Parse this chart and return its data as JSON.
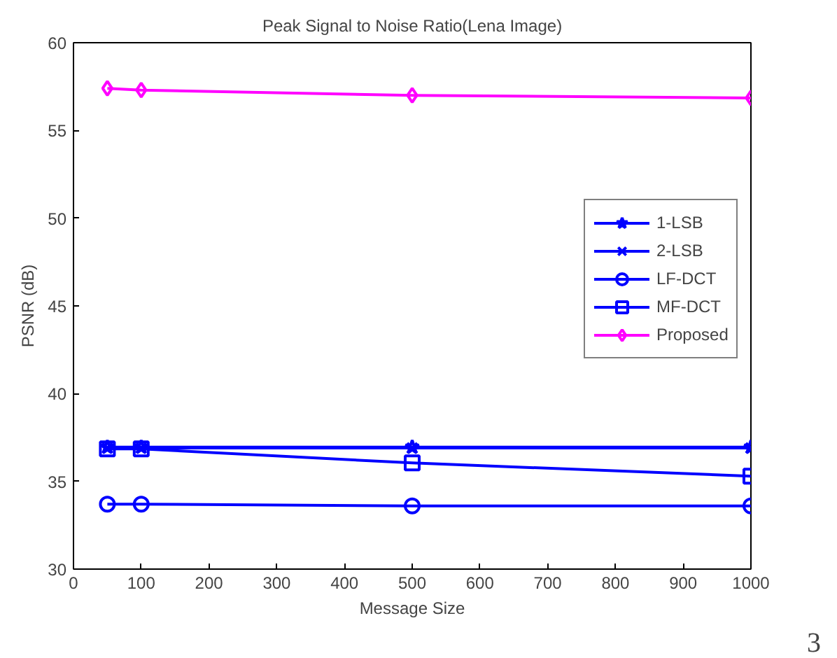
{
  "chart_data": {
    "type": "line",
    "title": "Peak Signal to Noise Ratio(Lena Image)",
    "xlabel": "Message Size",
    "ylabel": "PSNR (dB)",
    "x": [
      50,
      100,
      500,
      1000
    ],
    "series": [
      {
        "name": "1-LSB",
        "color": "#0000ff",
        "marker": "star",
        "values": [
          36.95,
          36.95,
          36.95,
          36.95
        ]
      },
      {
        "name": "2-LSB",
        "color": "#0000ff",
        "marker": "cross",
        "values": [
          36.9,
          36.9,
          36.9,
          36.9
        ]
      },
      {
        "name": "LF-DCT",
        "color": "#0000ff",
        "marker": "circle",
        "values": [
          33.7,
          33.7,
          33.6,
          33.6
        ]
      },
      {
        "name": "MF-DCT",
        "color": "#0000ff",
        "marker": "square",
        "values": [
          36.85,
          36.85,
          36.05,
          35.3
        ]
      },
      {
        "name": "Proposed",
        "color": "#ff00ff",
        "marker": "diamond",
        "values": [
          57.4,
          57.3,
          57.0,
          56.85
        ]
      }
    ],
    "xlim": [
      0,
      1000
    ],
    "ylim": [
      30,
      60
    ],
    "xticks": [
      0,
      100,
      200,
      300,
      400,
      500,
      600,
      700,
      800,
      900,
      1000
    ],
    "yticks": [
      30,
      35,
      40,
      45,
      50,
      55,
      60
    ],
    "grid": false,
    "legend": "right",
    "line_style": "solid",
    "annotations": [
      "3"
    ]
  }
}
